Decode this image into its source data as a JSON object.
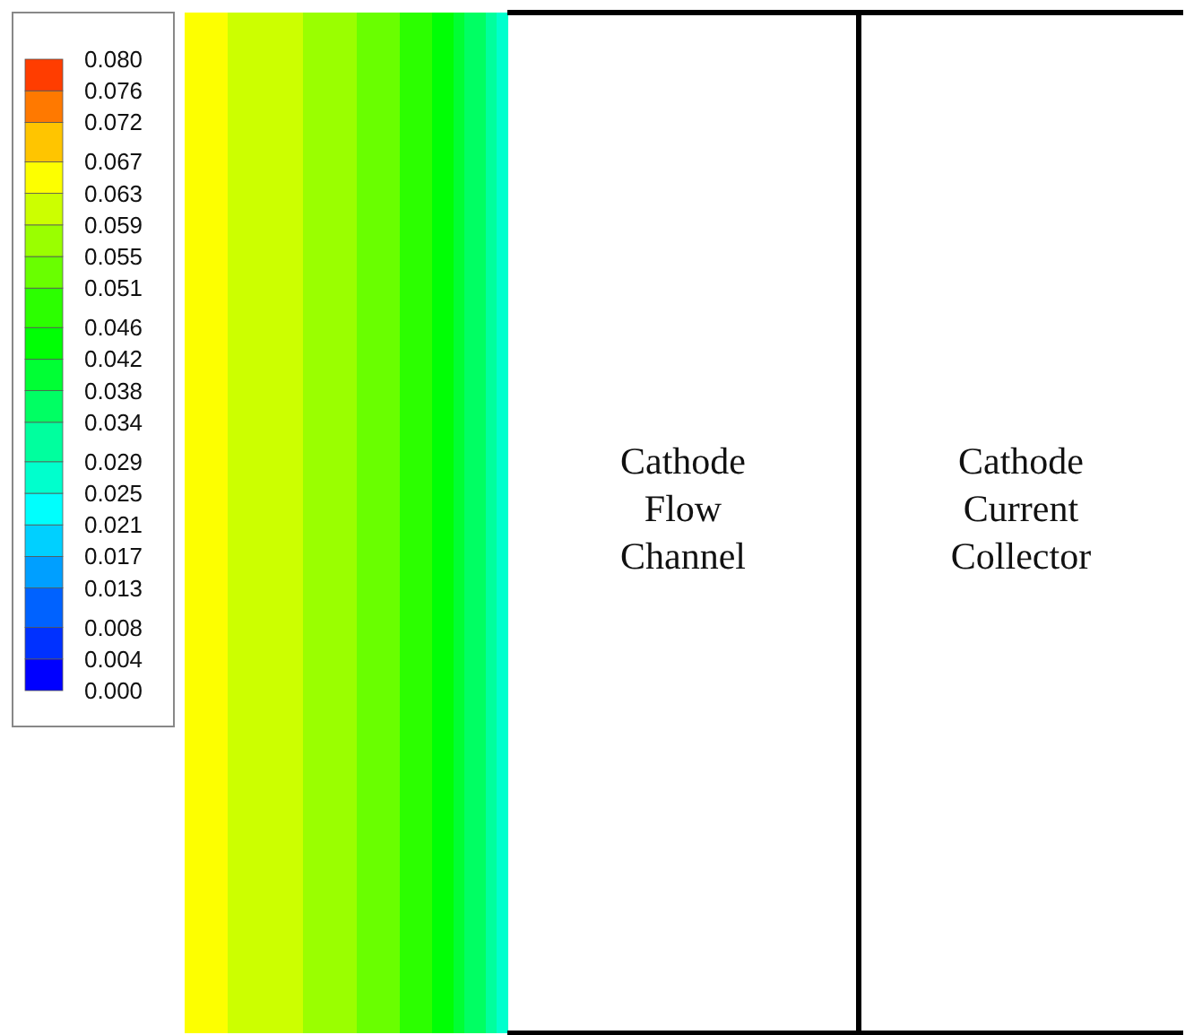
{
  "chart_data": {
    "type": "heatmap",
    "categories": [
      null,
      null,
      null,
      null,
      null,
      null,
      null,
      null,
      null,
      null,
      null,
      null,
      null,
      null,
      null,
      null,
      null,
      null,
      null,
      null,
      null,
      null,
      null,
      null,
      null,
      null,
      null,
      null,
      null,
      null
    ],
    "y_categories": [
      null
    ],
    "cells": [
      [
        0.063,
        0.063,
        0.063,
        0.063,
        0.059,
        0.059,
        0.059,
        0.059,
        0.059,
        0.059,
        0.059,
        0.055,
        0.055,
        0.055,
        0.055,
        0.055,
        0.051,
        0.051,
        0.051,
        0.051,
        0.046,
        0.046,
        0.046,
        0.042,
        0.042,
        0.038,
        0.034,
        0.034,
        0.029,
        0.025
      ]
    ],
    "clim": [
      0.0,
      0.08
    ],
    "cticks": [
      {
        "value": 0.0,
        "label": "0.000"
      },
      0.004,
      0.008,
      0.013,
      0.017,
      0.021,
      0.025,
      0.029,
      0.034,
      0.038,
      0.042,
      0.046,
      0.051,
      0.055,
      0.059,
      0.063,
      0.067,
      0.072,
      0.076,
      {
        "value": 0.08,
        "label": "0.080"
      }
    ],
    "annotations": [
      "Cathode\nFlow\nChannel",
      "Cathode\nCurrent\nCollector"
    ]
  }
}
